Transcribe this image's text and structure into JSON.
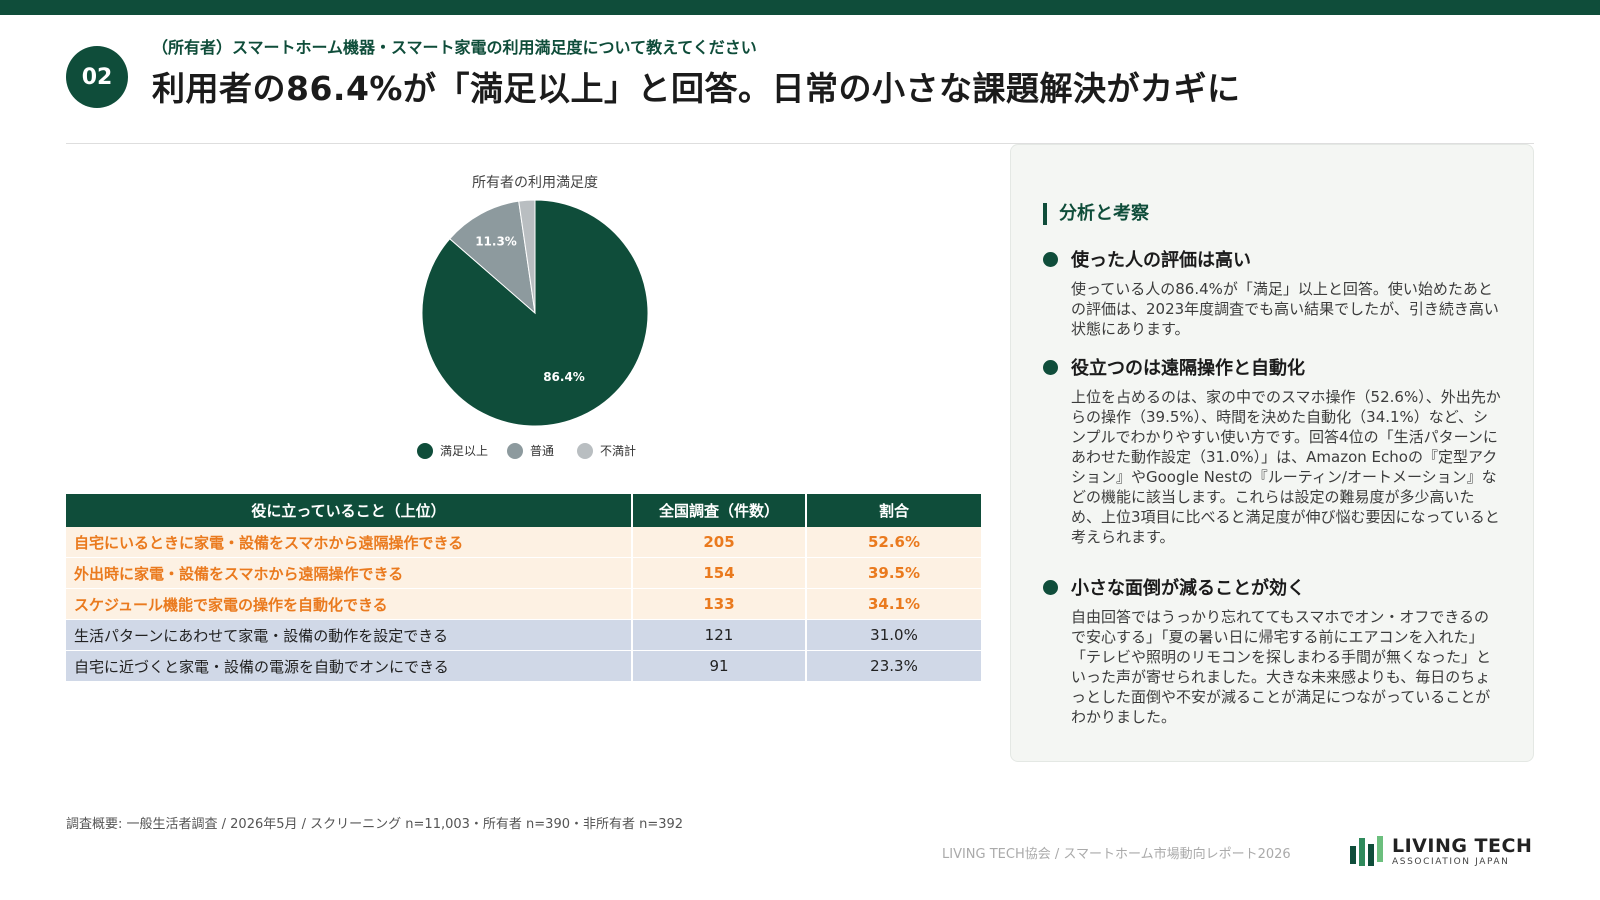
{
  "header": {
    "badge": "02",
    "subtitle": "（所有者）スマートホーム機器・スマート家電の利用満足度について教えてください",
    "title": "利用者の86.4%が「満足以上」と回答。日常の小さな課題解決がカギに"
  },
  "chart_data": {
    "type": "pie",
    "title": "所有者の利用満足度",
    "slices": [
      {
        "name": "満足以上",
        "value": 86.4,
        "label": "86.4%",
        "color": "#0f4d3a"
      },
      {
        "name": "普通",
        "value": 11.3,
        "label": "11.3%",
        "color": "#8d9a9e"
      },
      {
        "name": "不満計",
        "value": 2.3,
        "label": "",
        "color": "#b9bec1"
      }
    ],
    "legend_position": "bottom"
  },
  "table": {
    "headers": [
      "役に立っていること（上位）",
      "全国調査（件数）",
      "割合"
    ],
    "rows": [
      {
        "item": "自宅にいるときに家電・設備をスマホから遠隔操作できる",
        "count": "205",
        "pct": "52.6%",
        "highlight": true
      },
      {
        "item": "外出時に家電・設備をスマホから遠隔操作できる",
        "count": "154",
        "pct": "39.5%",
        "highlight": true
      },
      {
        "item": "スケジュール機能で家電の操作を自動化できる",
        "count": "133",
        "pct": "34.1%",
        "highlight": true
      },
      {
        "item": "生活パターンにあわせて家電・設備の動作を設定できる",
        "count": "121",
        "pct": "31.0%",
        "highlight": false
      },
      {
        "item": "自宅に近づくと家電・設備の電源を自動でオンにできる",
        "count": "91",
        "pct": "23.3%",
        "highlight": false
      }
    ]
  },
  "analysis": {
    "heading": "分析と考察",
    "points": [
      {
        "title": "使った人の評価は高い",
        "body": "使っている人の86.4%が「満足」以上と回答。使い始めたあとの評価は、2023年度調査でも高い結果でしたが、引き続き高い状態にあります。"
      },
      {
        "title": "役立つのは遠隔操作と自動化",
        "body": "上位を占めるのは、家の中でのスマホ操作（52.6%）、外出先からの操作（39.5%）、時間を決めた自動化（34.1%）など、シンプルでわかりやすい使い方です。回答4位の「生活パターンにあわせた動作設定（31.0%）」は、Amazon Echoの『定型アクション』やGoogle Nestの『ルーティン/オートメーション』などの機能に該当します。これらは設定の難易度が多少高いため、上位3項目に比べると満足度が伸び悩む要因になっていると考えられます。"
      },
      {
        "title": "小さな面倒が減ることが効く",
        "body": "自由回答ではうっかり忘れててもスマホでオン・オフできるので安心する」「夏の暑い日に帰宅する前にエアコンを入れた」「テレビや照明のリモコンを探しまわる手間が無くなった」といった声が寄せられました。大きな未来感よりも、毎日のちょっとした面倒や不安が減ることが満足につながっていることがわかりました。"
      }
    ]
  },
  "footer": {
    "note": "調査概要: 一般生活者調査 / 2026年5月 / スクリーニング n=11,003・所有者 n=390・非所有者 n=392",
    "credit": "LIVING TECH協会 / スマートホーム市場動向レポート2026",
    "logo_line1": "LIVING TECH",
    "logo_line2": "ASSOCIATION JAPAN"
  }
}
